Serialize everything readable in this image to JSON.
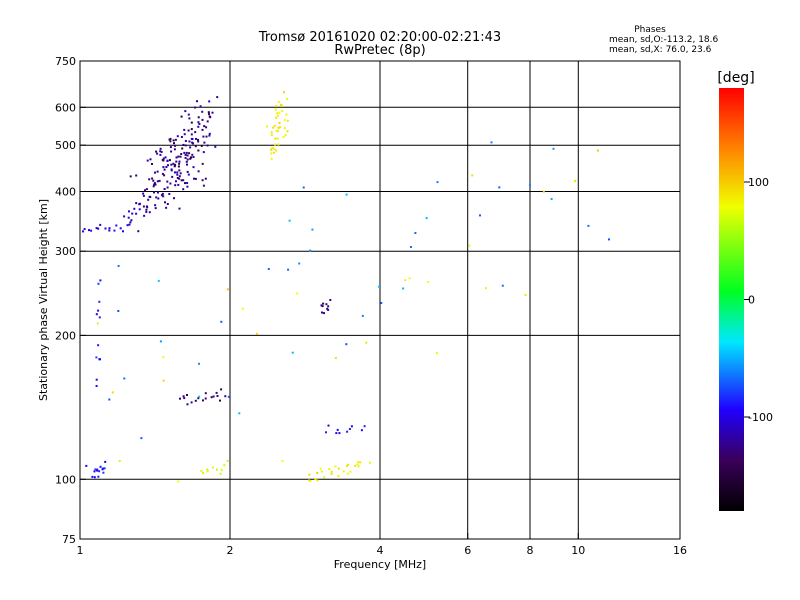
{
  "chart_data": {
    "type": "scatter",
    "title": "Tromsø 20161020 02:20:00-02:21:43",
    "subtitle": "RwPretec (8p)",
    "xlabel": "Frequency [MHz]",
    "ylabel": "Stationary phase Virtual Height [km]",
    "x_scale": "log",
    "y_scale": "log",
    "xlim": [
      1,
      16
    ],
    "ylim": [
      75,
      750
    ],
    "x_ticks": [
      1,
      2,
      4,
      6,
      8,
      10,
      16
    ],
    "x_tick_labels": [
      "1",
      "2",
      "4",
      "6",
      "8",
      "10",
      "16"
    ],
    "y_ticks": [
      75,
      100,
      200,
      300,
      400,
      500,
      600,
      750
    ],
    "y_tick_labels": [
      "75",
      "100",
      "200",
      "300",
      "400",
      "500",
      "600",
      "750"
    ],
    "x_gridlines": [
      2,
      4,
      6,
      8,
      10
    ],
    "y_gridlines": [
      100,
      200,
      300,
      400,
      500,
      600
    ],
    "grid": true,
    "phases_box": {
      "title": "Phases",
      "line_o": "mean, sd,O:-113.2, 18.6",
      "line_x": "mean, sd,X:  76.0, 23.6"
    },
    "colorbar": {
      "label": "[deg]",
      "range": [
        -180,
        180
      ],
      "ticks": [
        100,
        0,
        -100
      ],
      "tick_labels": [
        "100",
        "0",
        "-100"
      ]
    },
    "series": [
      {
        "traces": [
          {
            "f0": 1.3,
            "f1": 1.78,
            "h0": 330,
            "h1": 560,
            "phase": -125,
            "n": 70,
            "jf": 0.035,
            "jh": 0.05
          },
          {
            "f0": 1.4,
            "f1": 1.82,
            "h0": 360,
            "h1": 640,
            "phase": -120,
            "n": 80,
            "jf": 0.04,
            "jh": 0.05
          },
          {
            "f0": 1.45,
            "f1": 1.8,
            "h0": 430,
            "h1": 600,
            "phase": -140,
            "n": 40,
            "jf": 0.03,
            "jh": 0.06
          },
          {
            "f0": 1.22,
            "f1": 1.36,
            "h0": 330,
            "h1": 400,
            "phase": -110,
            "n": 18,
            "jf": 0.01,
            "jh": 0.02
          },
          {
            "f0": 1.0,
            "f1": 1.2,
            "h0": 330,
            "h1": 340,
            "phase": -100,
            "n": 14,
            "jf": 0.01,
            "jh": 0.015
          },
          {
            "f0": 1.05,
            "f1": 1.11,
            "h0": 103,
            "h1": 107,
            "phase": -90,
            "n": 16,
            "jf": 0.03,
            "jh": 0.03
          },
          {
            "f0": 1.08,
            "f1": 1.1,
            "h0": 120,
            "h1": 330,
            "phase": -90,
            "n": 12,
            "jf": 0.005,
            "jh": 0.04
          },
          {
            "f0": 1.58,
            "f1": 1.95,
            "h0": 143,
            "h1": 152,
            "phase": -130,
            "n": 18,
            "jf": 0.015,
            "jh": 0.02
          },
          {
            "f0": 3.04,
            "f1": 3.18,
            "h0": 215,
            "h1": 245,
            "phase": -130,
            "n": 10,
            "jf": 0.005,
            "jh": 0.01
          },
          {
            "f0": 2.38,
            "f1": 2.6,
            "h0": 450,
            "h1": 650,
            "phase": 85,
            "n": 40,
            "jf": 0.02,
            "jh": 0.03
          },
          {
            "f0": 1.75,
            "f1": 1.98,
            "h0": 101,
            "h1": 108,
            "phase": 75,
            "n": 10,
            "jf": 0.02,
            "jh": 0.02
          },
          {
            "f0": 2.85,
            "f1": 3.75,
            "h0": 100,
            "h1": 110,
            "phase": 85,
            "n": 26,
            "jf": 0.02,
            "jh": 0.02
          },
          {
            "f0": 3.1,
            "f1": 3.7,
            "h0": 125,
            "h1": 130,
            "phase": -100,
            "n": 10,
            "jf": 0.02,
            "jh": 0.02
          },
          {
            "f0": 1.0,
            "f1": 10.5,
            "h0": 90,
            "h1": 650,
            "phase": -60,
            "n": 40,
            "jf": 0.2,
            "jh": 0.2
          },
          {
            "f0": 1.0,
            "f1": 12,
            "h0": 80,
            "h1": 600,
            "phase": 90,
            "n": 25,
            "jf": 0.2,
            "jh": 0.2
          }
        ]
      }
    ]
  }
}
